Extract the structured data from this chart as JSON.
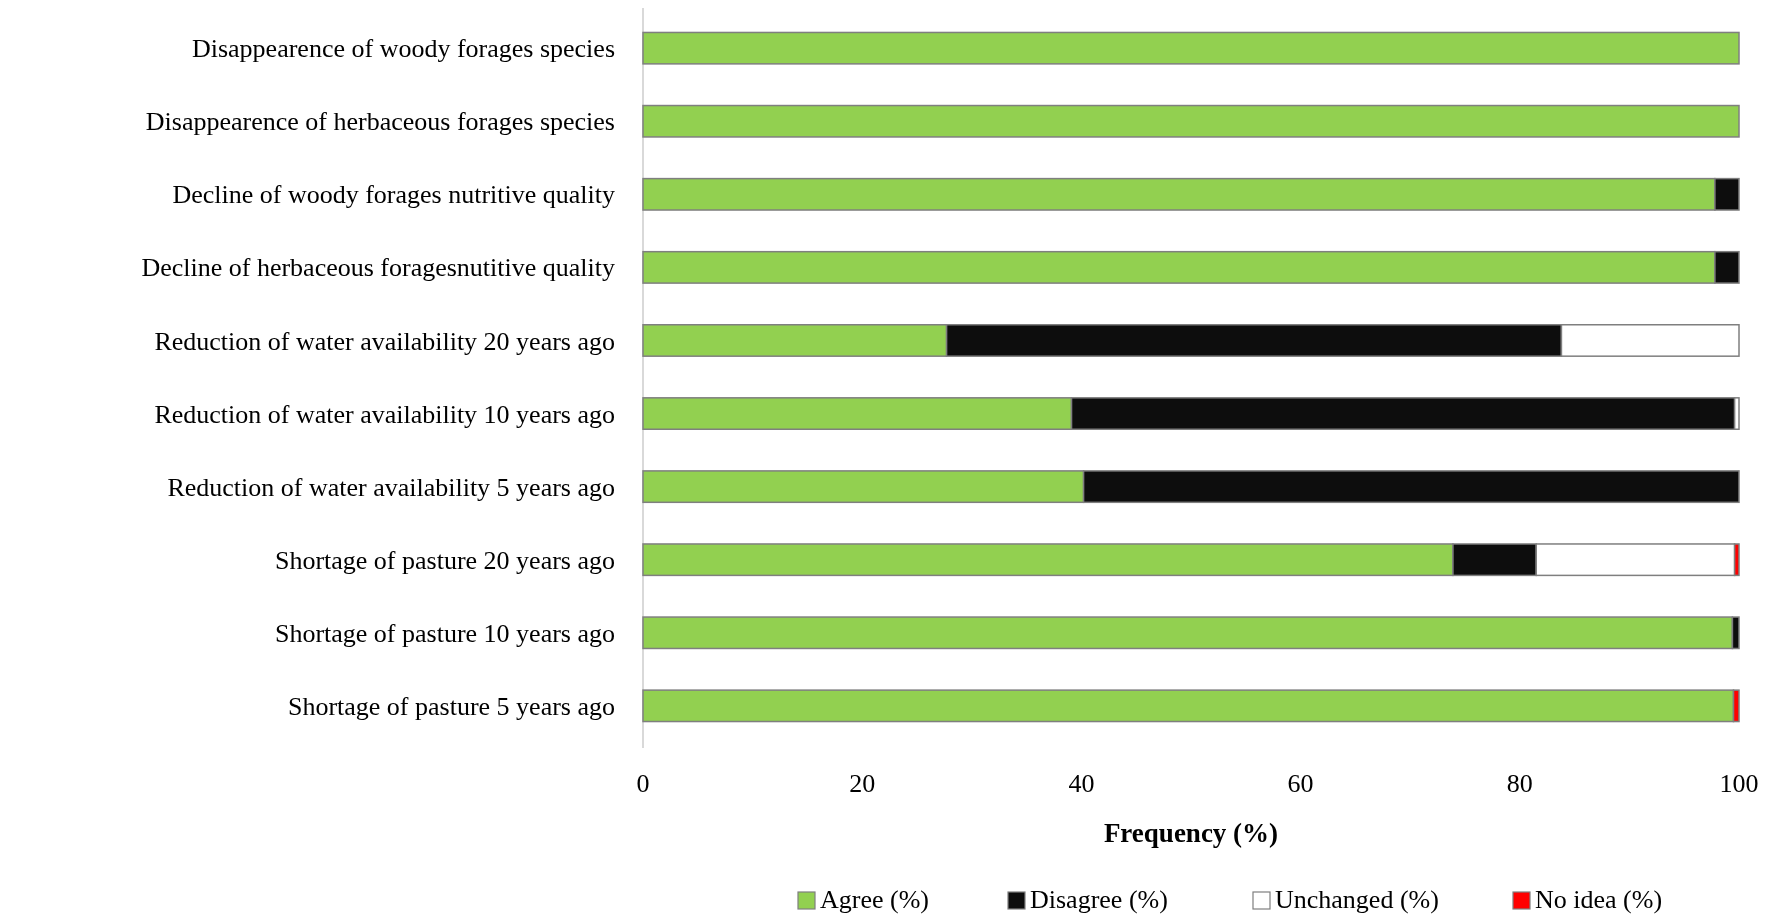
{
  "chart_data": {
    "type": "bar",
    "orientation": "horizontal",
    "stacked": true,
    "xlabel": "Frequency (%)",
    "categories": [
      "Disappearence of woody  forages species",
      "Disappearence of  herbaceous  forages species",
      "Decline of  woody  forages nutritive quality",
      "Decline of  herbaceous  foragesnutitive quality",
      "Reduction of water availability 20 years ago",
      "Reduction of water availability 10 years ago",
      "Reduction of water availability 5 years ago",
      "Shortage of  pasture 20 years ago",
      "Shortage of pasture 10 years ago",
      "Shortage of pasture 5 years ago"
    ],
    "series": [
      {
        "name": "Agree (%)",
        "color": "#92d050",
        "values": [
          100,
          100,
          97.8,
          97.8,
          27.7,
          39.1,
          40.2,
          73.9,
          99.4,
          99.5
        ]
      },
      {
        "name": "Disagree (%)",
        "color": "#0d0d0d",
        "values": [
          null,
          null,
          2.2,
          2.2,
          56.1,
          60.5,
          59.8,
          7.6,
          0.6,
          null
        ]
      },
      {
        "name": "Unchanged (%)",
        "color": "#ffffff",
        "values": [
          null,
          null,
          null,
          null,
          16.2,
          0.4,
          null,
          18.1,
          null,
          null
        ]
      },
      {
        "name": "No idea (%)",
        "color": "#ff0000",
        "values": [
          null,
          null,
          null,
          null,
          null,
          null,
          null,
          0.4,
          null,
          0.5
        ]
      }
    ],
    "xlim": [
      0,
      100
    ],
    "xticks": [
      0,
      20,
      40,
      60,
      80,
      100
    ],
    "grid": false,
    "legend": "bottom"
  }
}
